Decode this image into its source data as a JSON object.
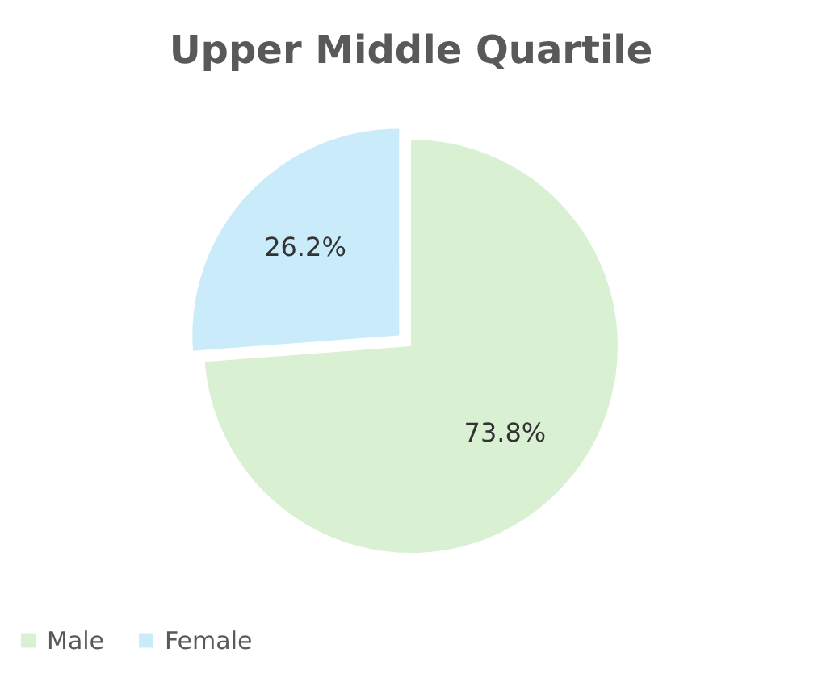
{
  "chart_data": {
    "type": "pie",
    "title": "Upper Middle Quartile",
    "categories": [
      "Male",
      "Female"
    ],
    "values": [
      73.8,
      26.2
    ],
    "colors": [
      "#d9f0d3",
      "#c9ebfa"
    ],
    "value_labels": [
      "73.8%",
      "26.2%"
    ],
    "legend": "bottom"
  }
}
